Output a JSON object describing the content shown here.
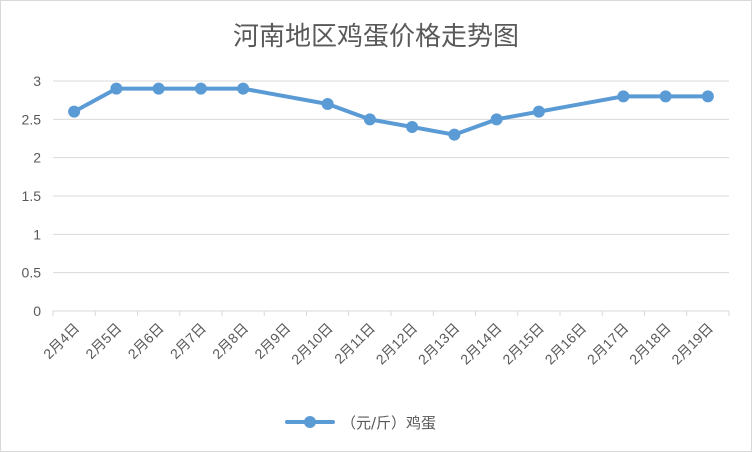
{
  "chart_data": {
    "type": "line",
    "title": "河南地区鸡蛋价格走势图",
    "categories": [
      "2月4日",
      "2月5日",
      "2月6日",
      "2月7日",
      "2月8日",
      "2月9日",
      "2月10日",
      "2月11日",
      "2月12日",
      "2月13日",
      "2月14日",
      "2月15日",
      "2月16日",
      "2月17日",
      "2月18日",
      "2月19日"
    ],
    "series": [
      {
        "name": "（元/斤）鸡蛋",
        "values": [
          2.6,
          2.9,
          2.9,
          2.9,
          2.9,
          null,
          2.7,
          2.5,
          2.4,
          2.3,
          2.5,
          2.6,
          null,
          2.8,
          2.8,
          2.8
        ],
        "color": "#5b9bd5"
      }
    ],
    "yticks": [
      "0",
      "0.5",
      "1",
      "1.5",
      "2",
      "2.5",
      "3"
    ],
    "ylim": [
      0,
      3
    ],
    "grid": true,
    "legend_position": "bottom",
    "gridline_color": "#d9d9d9"
  }
}
